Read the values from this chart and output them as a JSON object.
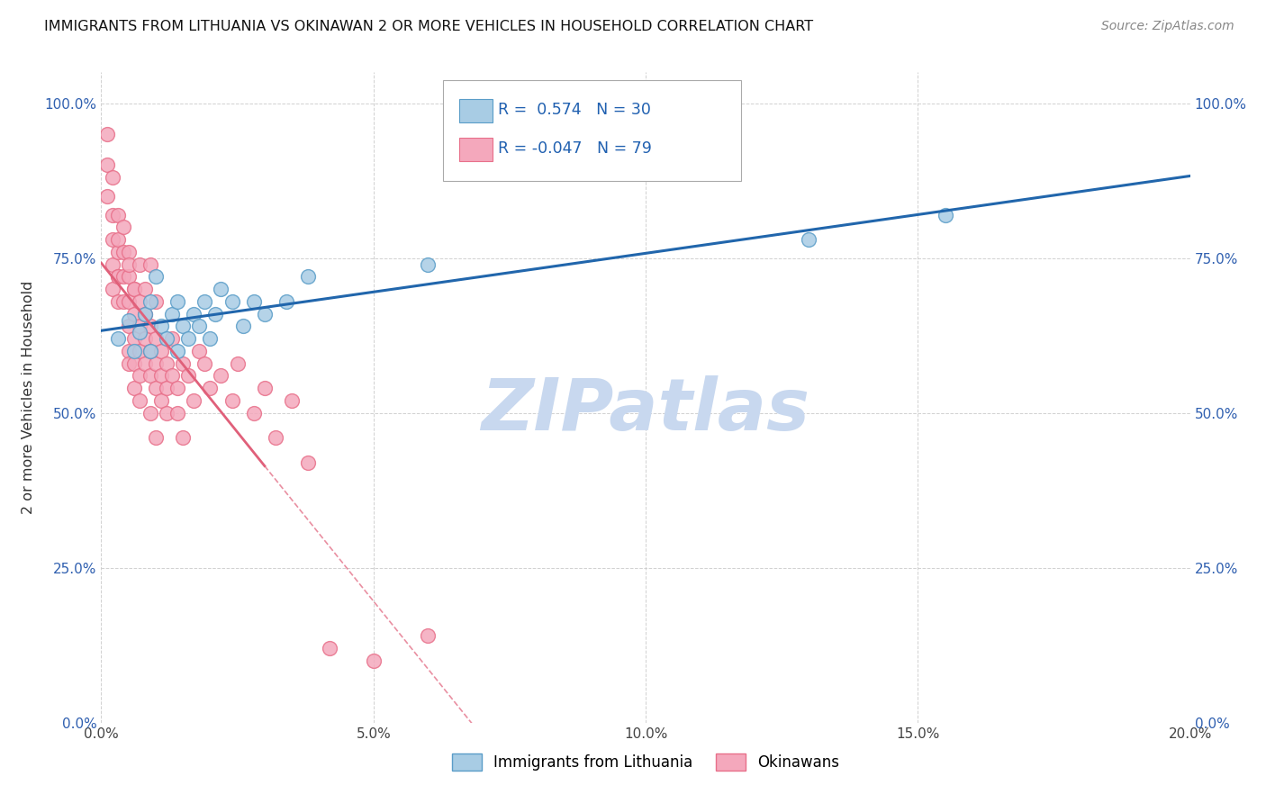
{
  "title": "IMMIGRANTS FROM LITHUANIA VS OKINAWAN 2 OR MORE VEHICLES IN HOUSEHOLD CORRELATION CHART",
  "source": "Source: ZipAtlas.com",
  "ylabel": "2 or more Vehicles in Household",
  "xlabel": "",
  "xlim": [
    0.0,
    0.2
  ],
  "ylim": [
    0.0,
    1.05
  ],
  "xticks": [
    0.0,
    0.05,
    0.1,
    0.15,
    0.2
  ],
  "xticklabels": [
    "0.0%",
    "5.0%",
    "10.0%",
    "15.0%",
    "20.0%"
  ],
  "yticks": [
    0.0,
    0.25,
    0.5,
    0.75,
    1.0
  ],
  "yticklabels": [
    "0.0%",
    "25.0%",
    "50.0%",
    "75.0%",
    "100.0%"
  ],
  "legend1_label": "Immigrants from Lithuania",
  "legend2_label": "Okinawans",
  "r1": 0.574,
  "n1": 30,
  "r2": -0.047,
  "n2": 79,
  "blue_color": "#a8cce4",
  "blue_edge": "#5a9dc8",
  "pink_color": "#f4a8bc",
  "pink_edge": "#e8708a",
  "blue_line_color": "#2166ac",
  "pink_line_color": "#e0607a",
  "watermark": "ZIPatlas",
  "watermark_color": "#c8d8ef",
  "blue_scatter_x": [
    0.003,
    0.005,
    0.006,
    0.007,
    0.008,
    0.009,
    0.009,
    0.01,
    0.011,
    0.012,
    0.013,
    0.014,
    0.014,
    0.015,
    0.016,
    0.017,
    0.018,
    0.019,
    0.02,
    0.021,
    0.022,
    0.024,
    0.026,
    0.028,
    0.03,
    0.034,
    0.038,
    0.06,
    0.13,
    0.155
  ],
  "blue_scatter_y": [
    0.62,
    0.65,
    0.6,
    0.63,
    0.66,
    0.6,
    0.68,
    0.72,
    0.64,
    0.62,
    0.66,
    0.6,
    0.68,
    0.64,
    0.62,
    0.66,
    0.64,
    0.68,
    0.62,
    0.66,
    0.7,
    0.68,
    0.64,
    0.68,
    0.66,
    0.68,
    0.72,
    0.74,
    0.78,
    0.82
  ],
  "pink_scatter_x": [
    0.001,
    0.001,
    0.001,
    0.002,
    0.002,
    0.002,
    0.002,
    0.002,
    0.003,
    0.003,
    0.003,
    0.003,
    0.003,
    0.003,
    0.004,
    0.004,
    0.004,
    0.004,
    0.005,
    0.005,
    0.005,
    0.005,
    0.005,
    0.005,
    0.005,
    0.006,
    0.006,
    0.006,
    0.006,
    0.006,
    0.006,
    0.007,
    0.007,
    0.007,
    0.007,
    0.007,
    0.007,
    0.008,
    0.008,
    0.008,
    0.008,
    0.009,
    0.009,
    0.009,
    0.009,
    0.009,
    0.01,
    0.01,
    0.01,
    0.01,
    0.01,
    0.011,
    0.011,
    0.011,
    0.012,
    0.012,
    0.012,
    0.013,
    0.013,
    0.014,
    0.014,
    0.015,
    0.015,
    0.016,
    0.017,
    0.018,
    0.019,
    0.02,
    0.022,
    0.024,
    0.025,
    0.028,
    0.03,
    0.032,
    0.035,
    0.038,
    0.042,
    0.05,
    0.06
  ],
  "pink_scatter_y": [
    0.9,
    0.85,
    0.95,
    0.88,
    0.82,
    0.78,
    0.74,
    0.7,
    0.76,
    0.72,
    0.68,
    0.82,
    0.78,
    0.72,
    0.8,
    0.76,
    0.72,
    0.68,
    0.76,
    0.72,
    0.68,
    0.64,
    0.6,
    0.74,
    0.58,
    0.7,
    0.66,
    0.62,
    0.58,
    0.7,
    0.54,
    0.68,
    0.64,
    0.6,
    0.74,
    0.56,
    0.52,
    0.66,
    0.62,
    0.58,
    0.7,
    0.64,
    0.6,
    0.56,
    0.74,
    0.5,
    0.62,
    0.58,
    0.54,
    0.68,
    0.46,
    0.6,
    0.56,
    0.52,
    0.58,
    0.54,
    0.5,
    0.56,
    0.62,
    0.54,
    0.5,
    0.58,
    0.46,
    0.56,
    0.52,
    0.6,
    0.58,
    0.54,
    0.56,
    0.52,
    0.58,
    0.5,
    0.54,
    0.46,
    0.52,
    0.42,
    0.12,
    0.1,
    0.14
  ]
}
